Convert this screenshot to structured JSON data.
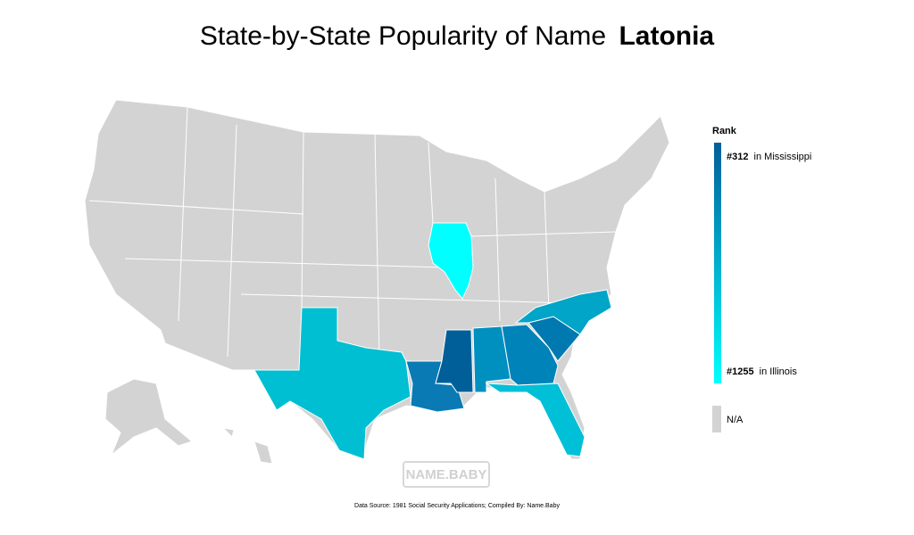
{
  "title": {
    "prefix": "State-by-State Popularity of Name",
    "name": "Latonia"
  },
  "legend": {
    "title": "Rank",
    "top": {
      "rank": "#312",
      "place": "in Mississippi"
    },
    "bottom": {
      "rank": "#1255",
      "place": "in Illinois"
    },
    "na": "N/A"
  },
  "watermark": "NAME.BABY",
  "source": "Data Source: 1981 Social Security Applications; Compiled By: Name.Baby"
}
